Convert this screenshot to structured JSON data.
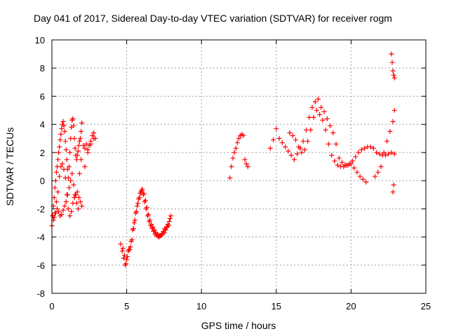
{
  "chart_data": {
    "type": "scatter",
    "title": "Day 041 of 2017, Sidereal Day-to-day VTEC variation (SDTVAR) for receiver rogm",
    "xlabel": "GPS time / hours",
    "ylabel": "SDTVAR / TECUs",
    "xlim": [
      0,
      25
    ],
    "ylim": [
      -8,
      10
    ],
    "xticks": [
      0,
      5,
      10,
      15,
      20,
      25
    ],
    "yticks": [
      -8,
      -6,
      -4,
      -2,
      0,
      2,
      4,
      6,
      8,
      10
    ],
    "grid": true,
    "marker": "plus",
    "colors": {
      "series": "#ff0000"
    },
    "series": [
      {
        "name": "SDTVAR",
        "x": [
          0.0,
          0.05,
          0.1,
          0.15,
          0.2,
          0.25,
          0.3,
          0.35,
          0.4,
          0.45,
          0.5,
          0.55,
          0.6,
          0.65,
          0.7,
          0.75,
          0.8,
          0.85,
          0.9,
          0.95,
          1.0,
          1.05,
          1.1,
          1.15,
          1.2,
          1.25,
          1.3,
          1.35,
          1.4,
          1.45,
          1.5,
          1.55,
          1.6,
          1.65,
          1.7,
          1.75,
          1.8,
          1.85,
          1.9,
          1.95,
          2.0,
          2.1,
          2.2,
          2.3,
          2.4,
          2.5,
          2.6,
          2.7,
          2.8,
          2.9,
          0.1,
          0.2,
          0.3,
          0.4,
          0.5,
          0.6,
          0.7,
          0.8,
          0.9,
          1.0,
          1.1,
          1.2,
          1.3,
          1.4,
          1.5,
          1.6,
          1.7,
          1.8,
          1.9,
          2.0,
          2.2,
          2.4,
          2.6,
          2.8,
          0.05,
          0.15,
          0.25,
          0.35,
          0.45,
          0.55,
          0.65,
          0.75,
          0.85,
          0.95,
          1.05,
          1.15,
          1.25,
          1.35,
          1.45,
          1.55,
          1.65,
          1.75,
          1.85,
          1.95,
          4.6,
          4.7,
          4.8,
          4.9,
          5.0,
          5.1,
          5.2,
          5.3,
          5.4,
          5.5,
          5.6,
          5.7,
          5.8,
          5.9,
          6.0,
          6.1,
          6.2,
          6.3,
          6.4,
          6.5,
          6.6,
          6.7,
          6.8,
          6.9,
          7.0,
          7.1,
          7.2,
          7.3,
          7.4,
          7.5,
          7.6,
          7.7,
          7.8,
          7.9,
          7.95,
          4.75,
          4.85,
          4.95,
          5.05,
          5.15,
          5.25,
          5.35,
          5.45,
          5.55,
          5.65,
          5.75,
          5.85,
          5.95,
          6.05,
          6.15,
          6.25,
          6.35,
          6.45,
          6.55,
          6.65,
          6.75,
          6.85,
          6.95,
          7.05,
          7.15,
          7.25,
          7.35,
          7.45,
          7.55,
          7.65,
          7.75,
          7.85,
          11.9,
          12.0,
          12.1,
          12.2,
          12.3,
          12.4,
          12.5,
          12.6,
          12.7,
          12.8,
          12.9,
          13.0,
          13.1,
          14.6,
          14.8,
          15.0,
          15.2,
          15.4,
          15.6,
          15.8,
          16.0,
          16.2,
          16.4,
          16.6,
          16.8,
          17.0,
          17.2,
          17.4,
          17.6,
          17.8,
          18.0,
          18.2,
          18.4,
          18.6,
          18.8,
          19.0,
          15.9,
          16.1,
          16.3,
          16.5,
          16.7,
          16.9,
          17.1,
          17.3,
          17.5,
          17.7,
          17.9,
          18.1,
          18.3,
          18.5,
          18.7,
          18.9,
          19.1,
          19.3,
          19.5,
          19.7,
          19.9,
          20.1,
          20.3,
          20.5,
          20.7,
          20.9,
          21.1,
          21.3,
          21.5,
          21.7,
          21.9,
          22.1,
          22.3,
          22.5,
          22.7,
          22.9,
          19.2,
          19.4,
          19.6,
          19.8,
          20.0,
          20.2,
          20.4,
          20.6,
          20.8,
          21.0,
          21.6,
          21.8,
          22.0,
          22.2,
          22.4,
          22.6,
          22.8,
          22.9,
          22.7,
          22.75,
          22.8,
          22.85,
          22.9,
          22.85,
          22.8
        ],
        "y": [
          -3.2,
          -2.5,
          -1.8,
          -1.2,
          -0.5,
          0.0,
          0.6,
          1.0,
          1.5,
          2.0,
          2.4,
          2.9,
          3.3,
          3.7,
          4.0,
          4.2,
          3.9,
          3.5,
          2.8,
          2.2,
          1.5,
          0.8,
          0.2,
          1.0,
          2.0,
          3.0,
          3.8,
          4.3,
          4.4,
          3.9,
          3.0,
          2.3,
          1.8,
          1.5,
          1.8,
          2.1,
          2.5,
          2.8,
          3.0,
          3.5,
          4.1,
          2.5,
          2.3,
          2.6,
          2.2,
          2.5,
          2.8,
          3.2,
          3.4,
          3.0,
          -2.8,
          -2.3,
          -1.5,
          -0.8,
          0.3,
          1.0,
          1.2,
          0.8,
          0.2,
          -1.0,
          -2.0,
          -2.5,
          -2.2,
          -1.6,
          -1.2,
          -1.0,
          -0.8,
          -1.2,
          -1.5,
          -1.8,
          1.0,
          2.0,
          2.6,
          3.0,
          -2.5,
          -2.6,
          -2.3,
          -2.0,
          -2.2,
          -2.5,
          -2.4,
          -2.1,
          -1.8,
          -1.5,
          -1.0,
          -0.5,
          0.0,
          0.5,
          -0.3,
          -1.0,
          -1.6,
          -2.0,
          0.5,
          1.5,
          -4.5,
          -5.0,
          -5.5,
          -6.0,
          -5.6,
          -5.0,
          -4.9,
          -4.3,
          -3.5,
          -3.0,
          -2.3,
          -1.8,
          -1.3,
          -0.9,
          -0.7,
          -1.0,
          -1.5,
          -2.0,
          -2.5,
          -2.9,
          -3.2,
          -3.4,
          -3.6,
          -3.8,
          -3.9,
          -4.0,
          -4.0,
          -3.9,
          -3.8,
          -3.7,
          -3.5,
          -3.3,
          -3.2,
          -2.7,
          -2.5,
          -4.8,
          -5.3,
          -5.9,
          -5.4,
          -4.9,
          -4.7,
          -4.2,
          -3.4,
          -2.8,
          -2.2,
          -1.6,
          -1.2,
          -0.8,
          -0.6,
          -0.9,
          -1.4,
          -1.9,
          -2.4,
          -2.8,
          -3.1,
          -3.3,
          -3.5,
          -3.7,
          -3.8,
          -3.9,
          -3.9,
          -3.8,
          -3.6,
          -3.4,
          -3.3,
          -3.1,
          -2.9,
          0.2,
          1.0,
          1.6,
          2.0,
          2.3,
          2.7,
          3.0,
          3.2,
          3.3,
          3.2,
          1.5,
          1.2,
          1.0,
          2.3,
          2.9,
          3.7,
          3.0,
          2.7,
          2.4,
          2.1,
          1.8,
          1.5,
          1.9,
          2.3,
          2.8,
          3.6,
          4.5,
          5.2,
          5.6,
          5.8,
          5.2,
          4.9,
          4.4,
          3.9,
          3.4,
          2.6,
          3.4,
          3.2,
          2.9,
          2.4,
          2.0,
          2.2,
          2.8,
          3.6,
          4.5,
          5.0,
          4.7,
          4.3,
          3.6,
          2.6,
          1.8,
          1.4,
          1.1,
          1.0,
          1.0,
          1.1,
          1.2,
          1.4,
          1.7,
          2.0,
          2.2,
          2.3,
          2.4,
          2.4,
          2.3,
          2.0,
          1.9,
          1.8,
          1.8,
          1.9,
          2.0,
          1.9,
          1.6,
          1.3,
          1.1,
          1.1,
          1.2,
          0.9,
          0.6,
          0.3,
          0.1,
          -0.1,
          0.3,
          0.6,
          1.0,
          2.0,
          2.8,
          3.5,
          4.2,
          5.0,
          9.0,
          8.4,
          7.8,
          7.5,
          7.3,
          -0.3,
          -0.8
        ]
      }
    ]
  }
}
